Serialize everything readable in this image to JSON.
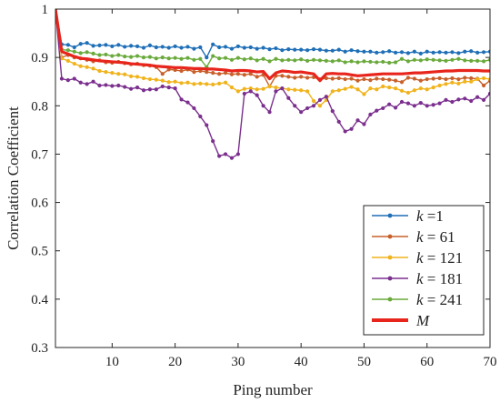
{
  "chart_data": {
    "type": "line",
    "title": "",
    "xlabel": "Ping number",
    "ylabel": "Correlation Coefficient",
    "xlim": [
      1,
      70
    ],
    "ylim": [
      0.3,
      1.0
    ],
    "xticks": [
      10,
      20,
      30,
      40,
      50,
      60,
      70
    ],
    "yticks": [
      0.3,
      0.4,
      0.5,
      0.6,
      0.7,
      0.8,
      0.9,
      1.0
    ],
    "ytick_labels": [
      "0.3",
      "0.4",
      "0.5",
      "0.6",
      "0.7",
      "0.8",
      "0.9",
      "1"
    ],
    "grid": false,
    "legend_position": "bottom-right",
    "x": [
      1,
      2,
      3,
      4,
      5,
      6,
      7,
      8,
      9,
      10,
      11,
      12,
      13,
      14,
      15,
      16,
      17,
      18,
      19,
      20,
      21,
      22,
      23,
      24,
      25,
      26,
      27,
      28,
      29,
      30,
      31,
      32,
      33,
      34,
      35,
      36,
      37,
      38,
      39,
      40,
      41,
      42,
      43,
      44,
      45,
      46,
      47,
      48,
      49,
      50,
      51,
      52,
      53,
      54,
      55,
      56,
      57,
      58,
      59,
      60,
      61,
      62,
      63,
      64,
      65,
      66,
      67,
      68,
      69,
      70
    ],
    "series": [
      {
        "name": "k = 1",
        "legend_k": "k",
        "legend_rest": " =1",
        "color": "#1f6fb7",
        "marker": true,
        "values": [
          1.0,
          0.927,
          0.926,
          0.921,
          0.928,
          0.93,
          0.924,
          0.925,
          0.926,
          0.923,
          0.926,
          0.922,
          0.924,
          0.923,
          0.92,
          0.925,
          0.921,
          0.922,
          0.92,
          0.923,
          0.92,
          0.922,
          0.918,
          0.921,
          0.9,
          0.927,
          0.921,
          0.922,
          0.918,
          0.923,
          0.92,
          0.921,
          0.918,
          0.92,
          0.917,
          0.919,
          0.915,
          0.917,
          0.916,
          0.916,
          0.915,
          0.917,
          0.916,
          0.914,
          0.914,
          0.916,
          0.912,
          0.915,
          0.913,
          0.912,
          0.912,
          0.91,
          0.911,
          0.913,
          0.91,
          0.911,
          0.909,
          0.912,
          0.908,
          0.912,
          0.91,
          0.911,
          0.91,
          0.911,
          0.909,
          0.912,
          0.913,
          0.91,
          0.911,
          0.912
        ]
      },
      {
        "name": "k = 61",
        "legend_k": "k",
        "legend_rest": " = 61",
        "color": "#c8602b",
        "marker": true,
        "values": [
          1.0,
          0.9,
          0.905,
          0.9,
          0.898,
          0.895,
          0.892,
          0.894,
          0.89,
          0.889,
          0.891,
          0.888,
          0.886,
          0.887,
          0.884,
          0.883,
          0.88,
          0.866,
          0.875,
          0.874,
          0.872,
          0.875,
          0.87,
          0.872,
          0.87,
          0.868,
          0.866,
          0.868,
          0.865,
          0.866,
          0.864,
          0.866,
          0.86,
          0.864,
          0.84,
          0.862,
          0.862,
          0.86,
          0.858,
          0.86,
          0.858,
          0.859,
          0.855,
          0.857,
          0.856,
          0.857,
          0.855,
          0.856,
          0.852,
          0.855,
          0.853,
          0.856,
          0.855,
          0.854,
          0.852,
          0.849,
          0.858,
          0.856,
          0.852,
          0.855,
          0.856,
          0.857,
          0.855,
          0.857,
          0.855,
          0.858,
          0.857,
          0.856,
          0.842,
          0.852
        ]
      },
      {
        "name": "k = 121",
        "legend_k": "k",
        "legend_rest": " = 121",
        "color": "#f0b31c",
        "marker": true,
        "values": [
          1.0,
          0.898,
          0.893,
          0.887,
          0.882,
          0.88,
          0.877,
          0.872,
          0.87,
          0.868,
          0.866,
          0.865,
          0.861,
          0.86,
          0.857,
          0.855,
          0.854,
          0.852,
          0.849,
          0.85,
          0.847,
          0.848,
          0.845,
          0.846,
          0.845,
          0.844,
          0.846,
          0.848,
          0.838,
          0.83,
          0.835,
          0.836,
          0.834,
          0.835,
          0.84,
          0.838,
          0.836,
          0.834,
          0.833,
          0.832,
          0.83,
          0.81,
          0.8,
          0.812,
          0.83,
          0.832,
          0.835,
          0.839,
          0.834,
          0.824,
          0.836,
          0.834,
          0.84,
          0.838,
          0.836,
          0.831,
          0.827,
          0.832,
          0.836,
          0.834,
          0.838,
          0.842,
          0.845,
          0.848,
          0.846,
          0.85,
          0.85,
          0.855,
          0.857,
          0.855
        ]
      },
      {
        "name": "k = 181",
        "legend_k": "k",
        "legend_rest": " = 181",
        "color": "#7b2f8e",
        "marker": true,
        "values": [
          1.0,
          0.856,
          0.853,
          0.856,
          0.848,
          0.845,
          0.85,
          0.842,
          0.843,
          0.841,
          0.842,
          0.839,
          0.835,
          0.838,
          0.832,
          0.834,
          0.834,
          0.84,
          0.838,
          0.836,
          0.813,
          0.807,
          0.795,
          0.778,
          0.76,
          0.727,
          0.696,
          0.7,
          0.692,
          0.7,
          0.825,
          0.83,
          0.822,
          0.8,
          0.787,
          0.83,
          0.836,
          0.816,
          0.8,
          0.787,
          0.795,
          0.8,
          0.812,
          0.819,
          0.789,
          0.767,
          0.747,
          0.752,
          0.77,
          0.762,
          0.782,
          0.79,
          0.795,
          0.803,
          0.796,
          0.808,
          0.805,
          0.8,
          0.806,
          0.8,
          0.802,
          0.805,
          0.812,
          0.808,
          0.813,
          0.815,
          0.81,
          0.818,
          0.812,
          0.825
        ]
      },
      {
        "name": "k = 241",
        "legend_k": "k",
        "legend_rest": " = 241",
        "color": "#6aaa3c",
        "marker": true,
        "values": [
          1.0,
          0.916,
          0.915,
          0.912,
          0.909,
          0.911,
          0.908,
          0.905,
          0.906,
          0.903,
          0.905,
          0.902,
          0.901,
          0.903,
          0.9,
          0.901,
          0.898,
          0.9,
          0.898,
          0.899,
          0.897,
          0.899,
          0.895,
          0.897,
          0.88,
          0.903,
          0.898,
          0.899,
          0.895,
          0.899,
          0.896,
          0.898,
          0.894,
          0.897,
          0.892,
          0.897,
          0.894,
          0.895,
          0.894,
          0.896,
          0.893,
          0.895,
          0.894,
          0.893,
          0.892,
          0.894,
          0.89,
          0.892,
          0.89,
          0.892,
          0.891,
          0.89,
          0.891,
          0.889,
          0.89,
          0.897,
          0.892,
          0.895,
          0.894,
          0.896,
          0.895,
          0.894,
          0.893,
          0.895,
          0.897,
          0.894,
          0.893,
          0.893,
          0.892,
          0.895
        ]
      },
      {
        "name": "M",
        "legend_k": "",
        "legend_rest": "M",
        "color": "#e8251c",
        "marker": false,
        "values": [
          1.0,
          0.912,
          0.907,
          0.902,
          0.898,
          0.897,
          0.895,
          0.893,
          0.892,
          0.891,
          0.89,
          0.889,
          0.887,
          0.886,
          0.885,
          0.884,
          0.882,
          0.881,
          0.88,
          0.879,
          0.879,
          0.878,
          0.877,
          0.877,
          0.876,
          0.876,
          0.875,
          0.874,
          0.872,
          0.873,
          0.873,
          0.872,
          0.87,
          0.871,
          0.856,
          0.868,
          0.872,
          0.871,
          0.869,
          0.87,
          0.868,
          0.866,
          0.852,
          0.866,
          0.867,
          0.866,
          0.866,
          0.864,
          0.862,
          0.863,
          0.864,
          0.865,
          0.866,
          0.866,
          0.866,
          0.866,
          0.867,
          0.868,
          0.868,
          0.869,
          0.87,
          0.871,
          0.872,
          0.872,
          0.873,
          0.873,
          0.873,
          0.873,
          0.872,
          0.872
        ]
      }
    ]
  }
}
